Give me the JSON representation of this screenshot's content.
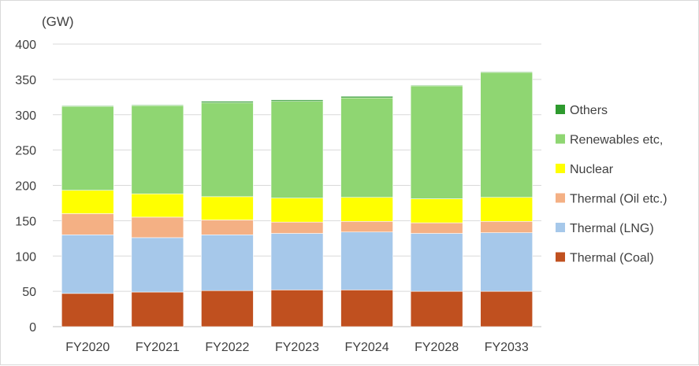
{
  "chart_data": {
    "type": "bar",
    "stacked": true,
    "unit_label": "(GW)",
    "categories": [
      "FY2020",
      "FY2021",
      "FY2022",
      "FY2023",
      "FY2024",
      "FY2028",
      "FY2033"
    ],
    "ylim": [
      0,
      400
    ],
    "yticks": [
      0,
      50,
      100,
      150,
      200,
      250,
      300,
      350,
      400
    ],
    "grid": true,
    "legend_position": "right",
    "series": [
      {
        "name": "Thermal (Coal)",
        "color": "#c0501f",
        "values": [
          47,
          49,
          51,
          52,
          52,
          50,
          50
        ]
      },
      {
        "name": "Thermal (LNG)",
        "color": "#a6c8ea",
        "values": [
          83,
          77,
          79,
          80,
          82,
          82,
          83
        ]
      },
      {
        "name": "Thermal (Oil etc.)",
        "color": "#f4b084",
        "values": [
          30,
          29,
          21,
          16,
          15,
          15,
          16
        ]
      },
      {
        "name": "Nuclear",
        "color": "#ffff00",
        "values": [
          33,
          33,
          33,
          34,
          34,
          34,
          34
        ]
      },
      {
        "name": "Renewables etc,",
        "color": "#8fd672",
        "values": [
          119,
          125,
          133,
          137,
          141,
          160,
          177
        ]
      },
      {
        "name": "Others",
        "color": "#2e9a2e",
        "values": [
          1,
          1,
          2,
          2,
          2,
          1,
          1
        ]
      }
    ]
  }
}
